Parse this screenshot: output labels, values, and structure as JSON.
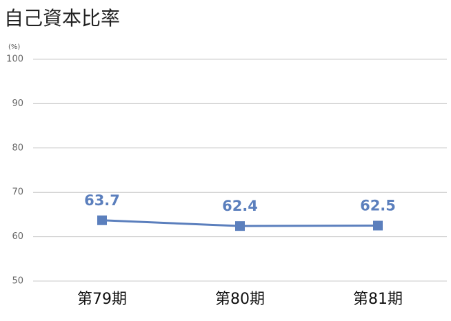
{
  "chart_data": {
    "type": "line",
    "title": "自己資本比率",
    "y_axis_label": "(%)",
    "categories": [
      "第79期",
      "第80期",
      "第81期"
    ],
    "values": [
      63.7,
      62.4,
      62.5
    ],
    "color": "#5b7fbd",
    "ylim": [
      50,
      100
    ],
    "yticks": [
      50,
      60,
      70,
      80,
      90,
      100
    ],
    "grid": true,
    "data_labels": true
  }
}
